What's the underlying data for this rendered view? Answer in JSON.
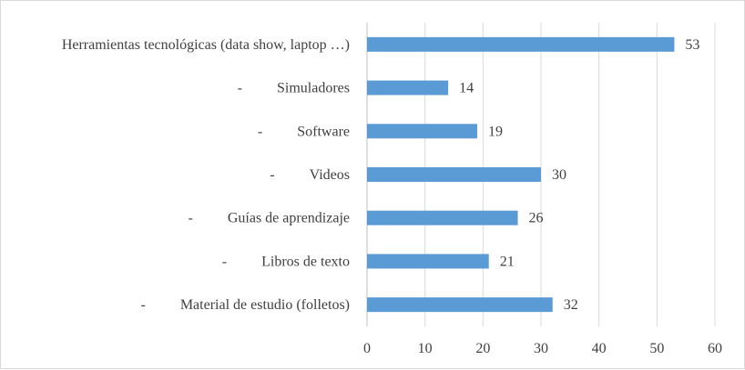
{
  "chart_data": {
    "type": "bar",
    "orientation": "horizontal",
    "title": "",
    "xlabel": "",
    "ylabel": "",
    "xlim": [
      0,
      60
    ],
    "ticks": [
      0,
      10,
      20,
      30,
      40,
      50,
      60
    ],
    "grid": true,
    "legend": "none",
    "bar_color": "#5b9bd5",
    "categories": [
      {
        "label": "Herramientas tecnológicas (data show, laptop …)",
        "prefix": "",
        "value": 53
      },
      {
        "label": "Simuladores",
        "prefix": "-",
        "value": 14
      },
      {
        "label": "Software",
        "prefix": "-",
        "value": 19
      },
      {
        "label": "Videos",
        "prefix": "-",
        "value": 30
      },
      {
        "label": "Guías de aprendizaje",
        "prefix": "-",
        "value": 26
      },
      {
        "label": "Libros de texto",
        "prefix": "-",
        "value": 21
      },
      {
        "label": "Material de estudio (folletos)",
        "prefix": "-",
        "value": 32
      }
    ]
  }
}
